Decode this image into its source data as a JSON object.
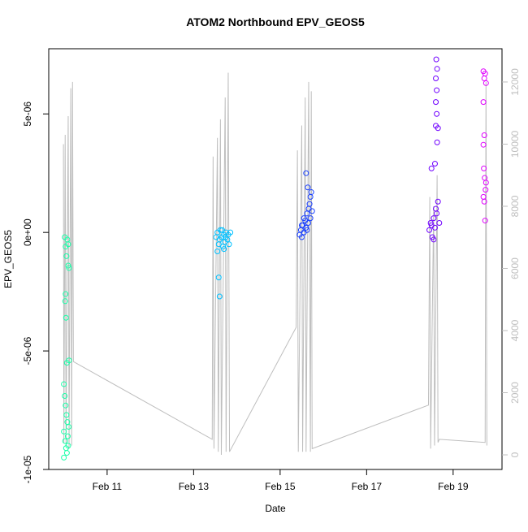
{
  "chart_data": {
    "type": "scatter",
    "title": "ATOM2 Northbound EPV_GEOS5",
    "x_label": "Date",
    "y_label": "EPV_GEOS5",
    "xlim": [
      9.65,
      20.13
    ],
    "ylim": [
      -1e-05,
      7.75e-06
    ],
    "y2lim": [
      -470,
      13070
    ],
    "xticks": [
      {
        "value": 11,
        "label": "Feb 11"
      },
      {
        "value": 13,
        "label": "Feb 13"
      },
      {
        "value": 15,
        "label": "Feb 15"
      },
      {
        "value": 17,
        "label": "Feb 17"
      },
      {
        "value": 19,
        "label": "Feb 19"
      }
    ],
    "yticks": [
      {
        "value": -1e-05,
        "label": "-1e-05"
      },
      {
        "value": -5e-06,
        "label": "-5e-06"
      },
      {
        "value": 0,
        "label": "0e+00"
      },
      {
        "value": 5e-06,
        "label": "5e-06"
      }
    ],
    "y2ticks": [
      0,
      2000,
      4000,
      6000,
      8000,
      10000,
      12000
    ],
    "series": [
      {
        "type": "line",
        "axis": "y2",
        "color": "#bebebe",
        "x": [
          9.99,
          10.0,
          10.03,
          10.05,
          10.1,
          10.12,
          10.16,
          10.18,
          10.2,
          10.22,
          13.43,
          13.45,
          13.47,
          13.55,
          13.57,
          13.62,
          13.64,
          13.73,
          13.75,
          13.8,
          13.83,
          15.37,
          15.4,
          15.42,
          15.5,
          15.52,
          15.58,
          15.6,
          15.66,
          15.7,
          15.72,
          15.74,
          18.43,
          18.46,
          18.48,
          18.55,
          18.57,
          18.63,
          18.65,
          18.68,
          19.74,
          19.76,
          19.78
        ],
        "values": [
          10000,
          400,
          10300,
          300,
          10900,
          200,
          11800,
          300,
          12000,
          3000,
          500,
          9600,
          200,
          10200,
          100,
          10800,
          0,
          11500,
          100,
          12300,
          100,
          4100,
          9800,
          100,
          10600,
          100,
          11500,
          100,
          12000,
          100,
          11700,
          200,
          1600,
          8300,
          200,
          8000,
          300,
          9000,
          400,
          500,
          400,
          12000,
          300
        ]
      },
      {
        "color": "#19ffa8",
        "x": [
          10.02,
          10.04,
          10.06,
          10.08,
          10.1,
          10.03,
          10.05,
          10.07,
          10.12,
          10.0,
          10.02,
          10.04,
          10.06,
          10.08,
          10.0,
          10.03,
          10.05,
          10.07,
          10.09,
          10.11,
          10.1,
          10.12,
          10.04,
          10.1,
          10.0
        ],
        "values": [
          -2e-07,
          -6e-07,
          -1e-06,
          -3e-07,
          -1.4e-06,
          -2.9e-06,
          -3.6e-06,
          -5.5e-06,
          -5.4e-06,
          -6.4e-06,
          -6.9e-06,
          -7.3e-06,
          -7.7e-06,
          -8e-06,
          -8.4e-06,
          -8.8e-06,
          -9.1e-06,
          -9.3e-06,
          -8.6e-06,
          -8.2e-06,
          -5e-07,
          -1.5e-06,
          -2.6e-06,
          -9e-06,
          -9.5e-06
        ]
      },
      {
        "color": "#00c0ff",
        "x": [
          13.52,
          13.55,
          13.58,
          13.6,
          13.62,
          13.65,
          13.68,
          13.7,
          13.72,
          13.75,
          13.78,
          13.8,
          13.82,
          13.85,
          13.55,
          13.6,
          13.58,
          13.7,
          13.66,
          13.74
        ],
        "values": [
          -2e-07,
          0,
          -5e-07,
          -3e-07,
          1e-07,
          -2e-07,
          -6e-07,
          -1e-07,
          -4e-07,
          0,
          -3e-07,
          -1e-07,
          -5e-07,
          0,
          -8e-07,
          -2.7e-06,
          -1.9e-06,
          -7e-07,
          1e-07,
          -2e-07
        ]
      },
      {
        "color": "#1a40ff",
        "x": [
          15.45,
          15.48,
          15.5,
          15.52,
          15.55,
          15.58,
          15.6,
          15.62,
          15.65,
          15.68,
          15.7,
          15.72,
          15.6,
          15.64,
          15.7,
          15.55,
          15.5,
          15.74,
          15.66,
          15.62
        ],
        "values": [
          -1e-07,
          1e-07,
          -2e-07,
          3e-07,
          0,
          5e-07,
          2e-07,
          8e-07,
          4e-07,
          1.2e-06,
          1.5e-06,
          1.7e-06,
          2.5e-06,
          1.9e-06,
          6e-07,
          6e-07,
          3e-07,
          9e-07,
          1e-06,
          1e-07
        ]
      },
      {
        "color": "#7000ff",
        "x": [
          18.45,
          18.48,
          18.5,
          18.52,
          18.55,
          18.58,
          18.6,
          18.62,
          18.65,
          18.5,
          18.58,
          18.6,
          18.62,
          18.6,
          18.62,
          18.6,
          18.63,
          18.61,
          18.55,
          18.68,
          18.65,
          18.63
        ],
        "values": [
          1e-07,
          4e-07,
          3e-07,
          -2e-07,
          6e-07,
          2e-07,
          1e-06,
          8e-07,
          1.3e-06,
          2.7e-06,
          2.9e-06,
          4.5e-06,
          5e-06,
          5.5e-06,
          6e-06,
          6.5e-06,
          6.9e-06,
          7.3e-06,
          -3e-07,
          4e-07,
          4.4e-06,
          3.8e-06
        ]
      },
      {
        "color": "#e000ff",
        "x": [
          19.7,
          19.72,
          19.74,
          19.76,
          19.7,
          19.72,
          19.7,
          19.71,
          19.73,
          19.75,
          19.72,
          19.74,
          19.7,
          19.76
        ],
        "values": [
          6.8e-06,
          6.5e-06,
          6.7e-06,
          6.3e-06,
          5.5e-06,
          4.1e-06,
          3.7e-06,
          2.7e-06,
          2.3e-06,
          1.8e-06,
          1.3e-06,
          5e-07,
          1.5e-06,
          2.1e-06
        ]
      }
    ]
  }
}
